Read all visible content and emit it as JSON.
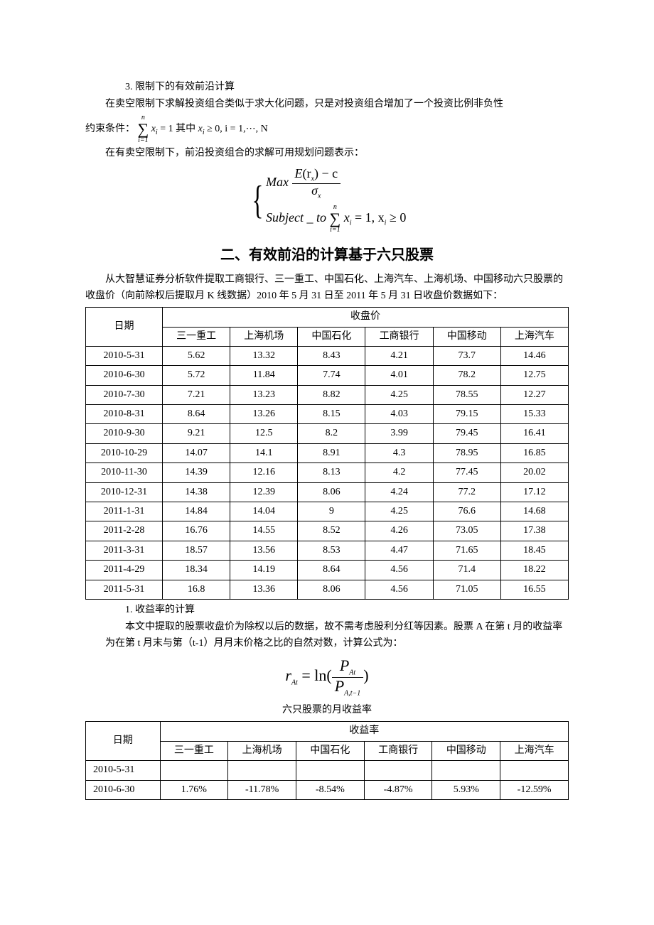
{
  "section3": {
    "num": "3.",
    "title": "限制下的有效前沿计算",
    "p1": "在卖空限制下求解投资组合类似于求大化问题，只是对投资组合增加了一个投资比例非负性",
    "p2_pre": "约束条件：",
    "p2_mid": "其中",
    "p3": "在有卖空限制下，前沿投资组合的求解可用规划问题表示："
  },
  "formula1": {
    "sum_lower": "i=1",
    "sum_upper": "n",
    "body": "x",
    "body_sub": "i",
    "eq": " = 1",
    "cond": "x",
    "cond_sub": "i",
    "cond_tail": " ≥ 0, i = 1,⋯, N"
  },
  "formula2": {
    "line1_label": "Max",
    "line1_num_a": "E",
    "line1_num_b": "(r",
    "line1_num_sub": "x",
    "line1_num_c": ") − c",
    "line1_den": "σ",
    "line1_den_sub": "x",
    "line2_label": "Subject _ to",
    "line2_sum_lower": "i=1",
    "line2_sum_upper": "n",
    "line2_body": "x",
    "line2_body_sub": "i",
    "line2_eq": " = 1, x",
    "line2_body2_sub": "i",
    "line2_tail": " ≥ 0"
  },
  "h2": "二、有效前沿的计算基于六只股票",
  "intro": "从大智慧证券分析软件提取工商银行、三一重工、中国石化、上海汽车、上海机场、中国移动六只股票的收盘价（向前除权后提取月 K 线数据）2010 年 5 月 31 日至 2011 年 5 月 31 日收盘价数据如下：",
  "table1": {
    "col_date": "日期",
    "header_group": "收盘价",
    "cols": [
      "三一重工",
      "上海机场",
      "中国石化",
      "工商银行",
      "中国移动",
      "上海汽车"
    ],
    "rows": [
      {
        "d": "2010-5-31",
        "v": [
          "5.62",
          "13.32",
          "8.43",
          "4.21",
          "73.7",
          "14.46"
        ]
      },
      {
        "d": "2010-6-30",
        "v": [
          "5.72",
          "11.84",
          "7.74",
          "4.01",
          "78.2",
          "12.75"
        ]
      },
      {
        "d": "2010-7-30",
        "v": [
          "7.21",
          "13.23",
          "8.82",
          "4.25",
          "78.55",
          "12.27"
        ]
      },
      {
        "d": "2010-8-31",
        "v": [
          "8.64",
          "13.26",
          "8.15",
          "4.03",
          "79.15",
          "15.33"
        ]
      },
      {
        "d": "2010-9-30",
        "v": [
          "9.21",
          "12.5",
          "8.2",
          "3.99",
          "79.45",
          "16.41"
        ]
      },
      {
        "d": "2010-10-29",
        "v": [
          "14.07",
          "14.1",
          "8.91",
          "4.3",
          "78.95",
          "16.85"
        ]
      },
      {
        "d": "2010-11-30",
        "v": [
          "14.39",
          "12.16",
          "8.13",
          "4.2",
          "77.45",
          "20.02"
        ]
      },
      {
        "d": "2010-12-31",
        "v": [
          "14.38",
          "12.39",
          "8.06",
          "4.24",
          "77.2",
          "17.12"
        ]
      },
      {
        "d": "2011-1-31",
        "v": [
          "14.84",
          "14.04",
          "9",
          "4.25",
          "76.6",
          "14.68"
        ]
      },
      {
        "d": "2011-2-28",
        "v": [
          "16.76",
          "14.55",
          "8.52",
          "4.26",
          "73.05",
          "17.38"
        ]
      },
      {
        "d": "2011-3-31",
        "v": [
          "18.57",
          "13.56",
          "8.53",
          "4.47",
          "71.65",
          "18.45"
        ]
      },
      {
        "d": "2011-4-29",
        "v": [
          "18.34",
          "14.19",
          "8.64",
          "4.56",
          "71.4",
          "18.22"
        ]
      },
      {
        "d": "2011-5-31",
        "v": [
          "16.8",
          "13.36",
          "8.06",
          "4.56",
          "71.05",
          "16.55"
        ]
      }
    ]
  },
  "section_r": {
    "num": "1.",
    "title": "收益率的计算",
    "p1": "本文中提取的股票收盘价为除权以后的数据，故不需考虑股利分红等因素。股票 A 在第 t 月的收益率为在第 t 月末与第（t-1）月月末价格之比的自然对数，计算公式为："
  },
  "formula3": {
    "lhs": "r",
    "lhs_sub": "At",
    "eq": " = ",
    "fn": "ln(",
    "num": "P",
    "num_sub": "At",
    "den": "P",
    "den_sub": "A,t−1",
    "close": ")"
  },
  "caption2": "六只股票的月收益率",
  "table2": {
    "col_date": "日期",
    "header_group": "收益率",
    "cols": [
      "三一重工",
      "上海机场",
      "中国石化",
      "工商银行",
      "中国移动",
      "上海汽车"
    ],
    "rows": [
      {
        "d": "2010-5-31",
        "v": [
          "",
          "",
          "",
          "",
          "",
          ""
        ]
      },
      {
        "d": "2010-6-30",
        "v": [
          "1.76%",
          "-11.78%",
          "-8.54%",
          "-4.87%",
          "5.93%",
          "-12.59%"
        ]
      }
    ]
  }
}
